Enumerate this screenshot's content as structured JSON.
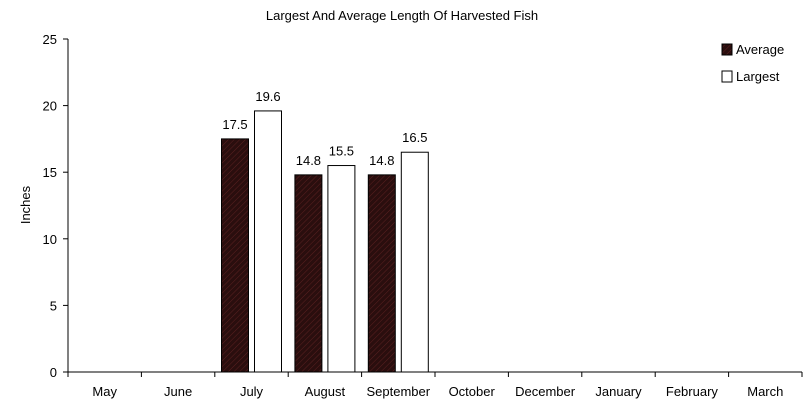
{
  "chart_data": {
    "type": "bar",
    "title": "Largest And Average Length Of Harvested Fish",
    "xlabel": "",
    "ylabel": "Inches",
    "ylim": [
      0,
      25
    ],
    "yticks": [
      0,
      5,
      10,
      15,
      20,
      25
    ],
    "grid": false,
    "legend_position": "top-right",
    "categories": [
      "May",
      "June",
      "July",
      "August",
      "September",
      "October",
      "December",
      "January",
      "February",
      "March"
    ],
    "series": [
      {
        "name": "Average",
        "values": [
          null,
          null,
          17.5,
          14.8,
          14.8,
          null,
          null,
          null,
          null,
          null
        ],
        "labels": [
          "",
          "",
          "17.5",
          "14.8",
          "14.8",
          "",
          "",
          "",
          "",
          ""
        ],
        "color": "#2a0e0e"
      },
      {
        "name": "Largest",
        "values": [
          null,
          null,
          19.6,
          15.5,
          16.5,
          null,
          null,
          null,
          null,
          null
        ],
        "labels": [
          "",
          "",
          "19.6",
          "15.5",
          "16.5",
          "",
          "",
          "",
          "",
          ""
        ],
        "color": "#ffffff"
      }
    ]
  }
}
